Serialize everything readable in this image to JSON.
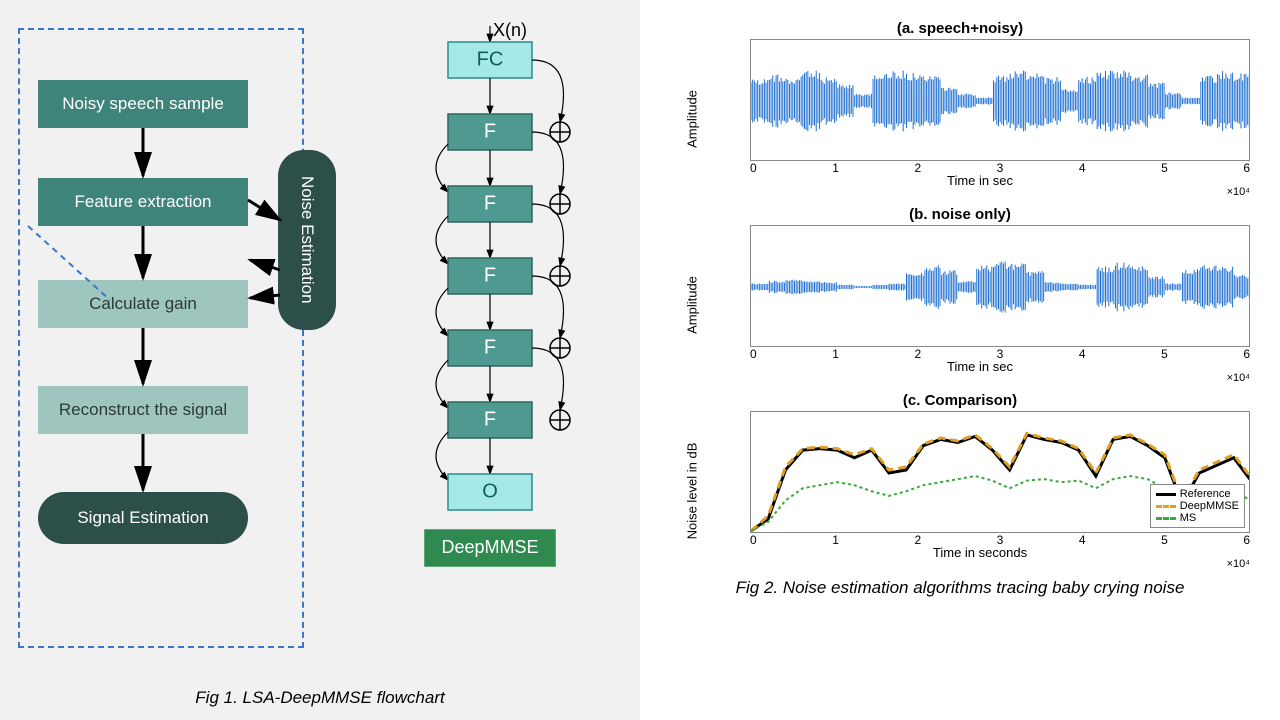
{
  "captions": {
    "fig1": "Fig 1. LSA-DeepMMSE flowchart",
    "fig2": "Fig 2. Noise estimation algorithms tracing baby crying noise"
  },
  "flowchart": {
    "boxes": {
      "noisy": {
        "label": "Noisy speech sample",
        "color": "#3e847b",
        "text": "#fff"
      },
      "feature": {
        "label": "Feature extraction",
        "color": "#3e847b",
        "text": "#fff"
      },
      "gain": {
        "label": "Calculate gain",
        "color": "#9fc5bf",
        "text": "#2b3a37"
      },
      "reconstruct": {
        "label": "Reconstruct the signal",
        "color": "#9fc5bf",
        "text": "#2b3a37"
      },
      "signal_est": {
        "label": "Signal Estimation",
        "color": "#2c4f4a",
        "text": "#fff"
      },
      "noise_est": {
        "label": "Noise Estimation",
        "color": "#2c4f4a",
        "text": "#fff"
      }
    },
    "dashed_border_color": "#3a77c9"
  },
  "network": {
    "input_label": "X(n)",
    "blocks": {
      "fc": {
        "label": "FC",
        "bg": "#a5e8e8",
        "border": "#2a8a8a"
      },
      "f": {
        "label": "F",
        "bg": "#4f9a90",
        "border": "#2f6660",
        "text": "#fff"
      },
      "o": {
        "label": "O",
        "bg": "#a5e8e8",
        "border": "#2a8a8a"
      },
      "footer": {
        "label": "DeepMMSE",
        "bg": "#2e8a4f",
        "text": "#fff"
      }
    },
    "n_f_blocks": 5
  },
  "charts": {
    "a": {
      "title": "(a. speech+noisy)",
      "ylabel": "Amplitude",
      "xlabel": "Time in sec",
      "xlim": [
        0,
        6
      ],
      "ylim": [
        -1,
        1
      ],
      "xticks": [
        0,
        1,
        2,
        3,
        4,
        5,
        6
      ],
      "yticks": [
        -1,
        0,
        1
      ],
      "exp": "×10⁴",
      "color": "#1f6fd1",
      "envelope": [
        0.38,
        0.45,
        0.4,
        0.5,
        0.4,
        0.28,
        0.12,
        0.45,
        0.5,
        0.48,
        0.42,
        0.22,
        0.12,
        0.06,
        0.42,
        0.5,
        0.46,
        0.4,
        0.2,
        0.4,
        0.5,
        0.5,
        0.44,
        0.3,
        0.14,
        0.06,
        0.42,
        0.5,
        0.46,
        0.3
      ]
    },
    "b": {
      "title": "(b. noise only)",
      "ylabel": "Amplitude",
      "xlabel": "Time in sec",
      "xlim": [
        0,
        6
      ],
      "ylim": [
        -1,
        1
      ],
      "xticks": [
        0,
        1,
        2,
        3,
        4,
        5,
        6
      ],
      "yticks": [
        -1,
        0,
        1
      ],
      "exp": "×10⁴",
      "color": "#1f6fd1",
      "envelope": [
        0.06,
        0.1,
        0.12,
        0.1,
        0.08,
        0.04,
        0.02,
        0.04,
        0.06,
        0.24,
        0.36,
        0.28,
        0.1,
        0.36,
        0.42,
        0.4,
        0.26,
        0.08,
        0.06,
        0.04,
        0.34,
        0.4,
        0.36,
        0.18,
        0.06,
        0.3,
        0.36,
        0.34,
        0.2,
        0.34
      ]
    },
    "c": {
      "title": "(c. Comparison)",
      "ylabel": "Noise level in dB",
      "xlabel": "Time in seconds",
      "xlim": [
        0,
        6
      ],
      "ylim": [
        -80,
        0
      ],
      "xticks": [
        0,
        1,
        2,
        3,
        4,
        5,
        6
      ],
      "yticks": [
        -50,
        0
      ],
      "exp": "×10⁴",
      "series": {
        "ref": {
          "label": "Reference",
          "color": "#000000",
          "dash": "",
          "width": 3,
          "data": [
            -78,
            -70,
            -38,
            -25,
            -24,
            -25,
            -30,
            -25,
            -40,
            -38,
            -22,
            -18,
            -20,
            -16,
            -25,
            -38,
            -15,
            -18,
            -20,
            -25,
            -42,
            -18,
            -16,
            -22,
            -30,
            -60,
            -40,
            -35,
            -30,
            -45
          ]
        },
        "deep": {
          "label": "DeepMMSE",
          "color": "#e0a020",
          "dash": "8,5",
          "width": 3,
          "data": [
            -78,
            -68,
            -36,
            -24,
            -23,
            -24,
            -28,
            -24,
            -38,
            -36,
            -21,
            -17,
            -19,
            -15,
            -24,
            -36,
            -14,
            -17,
            -19,
            -24,
            -40,
            -17,
            -15,
            -21,
            -28,
            -58,
            -38,
            -33,
            -28,
            -43
          ]
        },
        "ms": {
          "label": "MS",
          "color": "#3aa83a",
          "dash": "3,3",
          "width": 2,
          "data": [
            -78,
            -72,
            -58,
            -50,
            -48,
            -46,
            -48,
            -52,
            -55,
            -52,
            -48,
            -46,
            -44,
            -42,
            -45,
            -50,
            -45,
            -44,
            -46,
            -45,
            -50,
            -44,
            -42,
            -44,
            -50,
            -62,
            -55,
            -50,
            -52,
            -58
          ]
        }
      }
    },
    "plot_bg": "#ffffff",
    "plot_border": "#888888"
  }
}
